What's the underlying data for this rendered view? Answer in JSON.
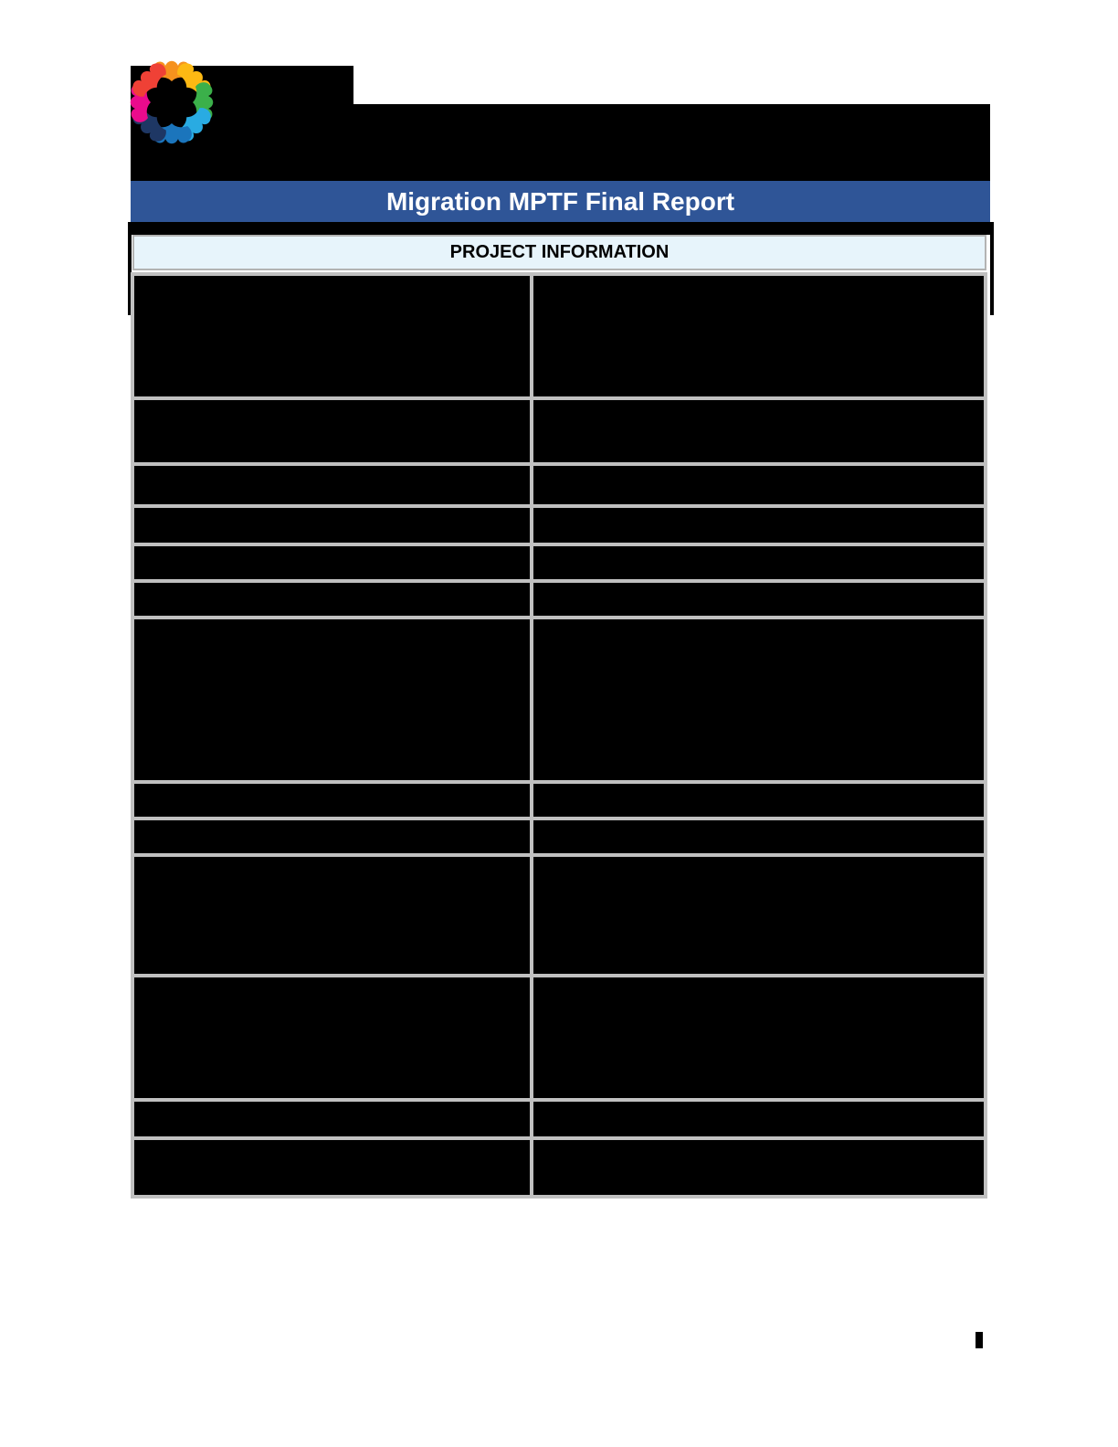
{
  "document": {
    "title": "Migration MPTF Final Report",
    "section_header": "PROJECT INFORMATION"
  },
  "colors": {
    "title_bar_bg": "#2F5597",
    "title_text": "#FFFFFF",
    "section_header_bg": "#E7F4FB",
    "section_header_text": "#000000",
    "table_grid": "#C0C0C0",
    "redaction": "#000000",
    "page_bg": "#FFFFFF"
  },
  "logo": {
    "name": "migration-mptf-hands-circle-logo",
    "petal_colors": [
      "#F6921E",
      "#FDB913",
      "#3BB04A",
      "#29ABE2",
      "#1B75BC",
      "#1E3764",
      "#EA0B8C",
      "#EF4136"
    ]
  },
  "table": {
    "columns": 2,
    "rows": [
      {
        "row": 1,
        "left_redacted": true,
        "right_redacted": true
      },
      {
        "row": 2,
        "left_redacted": true,
        "right_redacted": true
      },
      {
        "row": 3,
        "left_redacted": true,
        "right_redacted": true
      },
      {
        "row": 4,
        "left_redacted": true,
        "right_redacted": true
      },
      {
        "row": 5,
        "left_redacted": true,
        "right_redacted": true
      },
      {
        "row": 6,
        "left_redacted": true,
        "right_redacted": true
      },
      {
        "row": 7,
        "left_redacted": true,
        "right_redacted": true
      },
      {
        "row": 8,
        "left_redacted": true,
        "right_redacted": true
      },
      {
        "row": 9,
        "left_redacted": true,
        "right_redacted": true
      },
      {
        "row": 10,
        "left_redacted": true,
        "right_redacted": true
      },
      {
        "row": 11,
        "left_redacted": true,
        "right_redacted": true
      },
      {
        "row": 12,
        "left_redacted": true,
        "right_redacted": true
      },
      {
        "row": 13,
        "left_redacted": true,
        "right_redacted": true
      }
    ]
  },
  "header_redactions": {
    "top_left_block_redacted": true,
    "banner_block_redacted": true,
    "strip_below_title_redacted": true
  },
  "footer": {
    "page_number_redacted": true
  }
}
